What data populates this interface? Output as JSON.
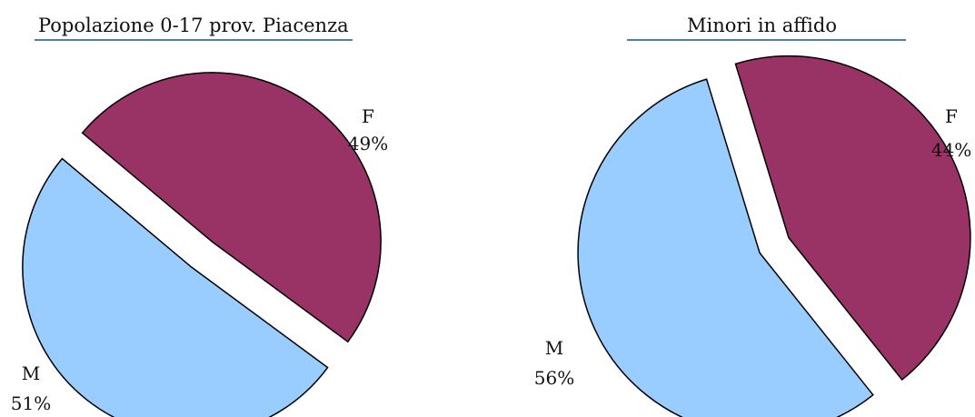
{
  "chart_data": [
    {
      "type": "pie",
      "title": "Popolazione 0-17 prov. Piacenza",
      "slices": [
        {
          "name": "F",
          "value": 49,
          "label": "49%",
          "color": "#993366"
        },
        {
          "name": "M",
          "value": 51,
          "label": "51%",
          "color": "#99ccff"
        }
      ],
      "exploded": true
    },
    {
      "type": "pie",
      "title": "Minori in affido",
      "slices": [
        {
          "name": "F",
          "value": 44,
          "label": "44%",
          "color": "#993366"
        },
        {
          "name": "M",
          "value": 56,
          "label": "56%",
          "color": "#99ccff"
        }
      ],
      "exploded": true
    }
  ]
}
